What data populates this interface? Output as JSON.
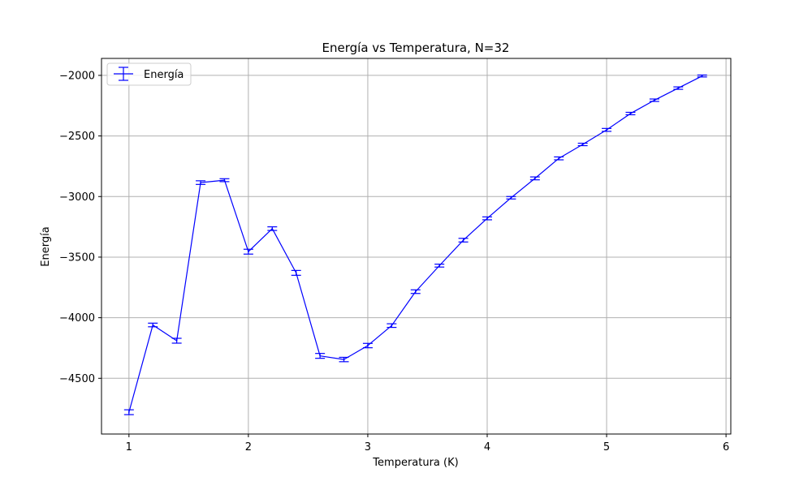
{
  "chart_data": {
    "type": "line",
    "title": "Energía vs Temperatura, N=32",
    "xlabel": "Temperatura (K)",
    "ylabel": "Energía",
    "xlim": [
      0.77,
      6.04
    ],
    "ylim": [
      -4960,
      -1860
    ],
    "xticks": [
      1,
      2,
      3,
      4,
      5,
      6
    ],
    "xtick_labels": [
      "1",
      "2",
      "3",
      "4",
      "5",
      "6"
    ],
    "yticks": [
      -4500,
      -4000,
      -3500,
      -3000,
      -2500,
      -2000
    ],
    "ytick_labels": [
      "−4500",
      "−4000",
      "−3500",
      "−3000",
      "−2500",
      "−2000"
    ],
    "grid": true,
    "legend": {
      "position": "top-left"
    },
    "colors": {
      "series": "#0000ff",
      "grid": "#b0b0b0"
    },
    "series": [
      {
        "name": "Energía",
        "x": [
          1.0,
          1.2,
          1.4,
          1.6,
          1.8,
          2.0,
          2.2,
          2.4,
          2.6,
          2.8,
          3.0,
          3.2,
          3.4,
          3.6,
          3.8,
          4.0,
          4.2,
          4.4,
          4.6,
          4.8,
          5.0,
          5.2,
          5.4,
          5.6,
          5.8
        ],
        "y": [
          -4780,
          -4060,
          -4190,
          -2885,
          -2865,
          -3455,
          -3265,
          -3630,
          -4315,
          -4345,
          -4230,
          -4065,
          -3785,
          -3570,
          -3360,
          -3180,
          -3010,
          -2850,
          -2685,
          -2570,
          -2450,
          -2315,
          -2205,
          -2105,
          -2005
        ],
        "yerr": [
          20,
          15,
          20,
          15,
          12,
          20,
          15,
          20,
          20,
          18,
          18,
          15,
          15,
          12,
          15,
          12,
          10,
          12,
          12,
          10,
          12,
          10,
          10,
          10,
          8
        ]
      }
    ]
  }
}
